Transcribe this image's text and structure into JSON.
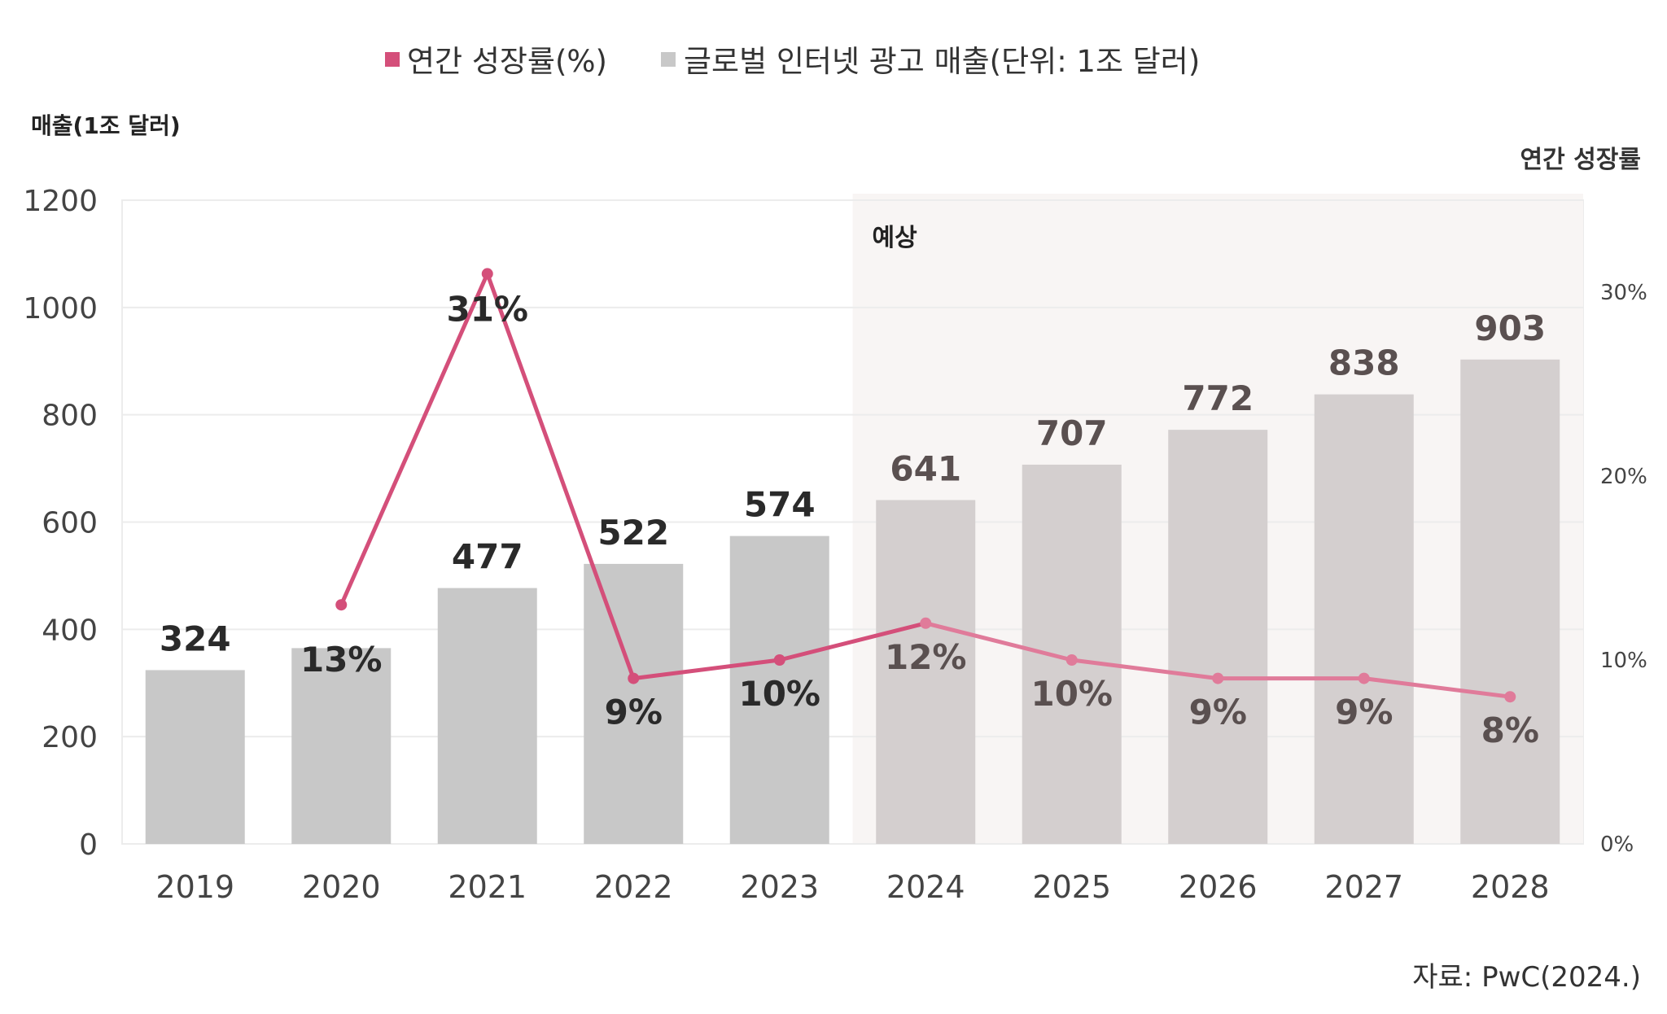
{
  "legend": {
    "growth_label": "연간 성장률(%)",
    "revenue_label": "글로벌 인터넷 광고 매출(단위: 1조 달러)"
  },
  "left_axis_title": "매출(1조 달러)",
  "right_axis_title": "연간 성장률",
  "forecast_label": "예상",
  "source": "자료: PwC(2024.)",
  "colors": {
    "bar_actual": "#c8c8c8",
    "bar_forecast": "#d4cfcf",
    "forecast_background": "#f8f5f4",
    "line_actual": "#d44f7a",
    "line_forecast": "#e07b9a",
    "label_actual": "#2a2a2a",
    "label_forecast": "#5a5050"
  },
  "chart_data": {
    "type": "bar",
    "categories": [
      "2019",
      "2020",
      "2021",
      "2022",
      "2023",
      "2024",
      "2025",
      "2026",
      "2027",
      "2028"
    ],
    "forecast_from": "2024",
    "series": [
      {
        "name": "글로벌 인터넷 광고 매출(단위: 1조 달러)",
        "type": "bar",
        "axis": "left",
        "values": [
          324,
          365,
          477,
          522,
          574,
          641,
          707,
          772,
          838,
          903
        ],
        "labels": [
          "324",
          "",
          "477",
          "522",
          "574",
          "641",
          "707",
          "772",
          "838",
          "903"
        ]
      },
      {
        "name": "연간 성장률(%)",
        "type": "line",
        "axis": "right",
        "values": [
          null,
          13,
          31,
          9,
          10,
          12,
          10,
          9,
          9,
          8
        ],
        "labels": [
          "",
          "13%",
          "31%",
          "9%",
          "10%",
          "12%",
          "10%",
          "9%",
          "9%",
          "8%"
        ]
      }
    ],
    "y_left": {
      "min": 0,
      "max": 1200,
      "ticks": [
        "0",
        "200",
        "400",
        "600",
        "800",
        "1000",
        "1200"
      ]
    },
    "y_right": {
      "min": 0,
      "max": 35,
      "ticks": [
        {
          "value": 0,
          "label": "0%"
        },
        {
          "value": 10,
          "label": "10%"
        },
        {
          "value": 20,
          "label": "20%"
        },
        {
          "value": 30,
          "label": "30%"
        }
      ]
    },
    "grid": true,
    "legend_position": "top-center"
  }
}
